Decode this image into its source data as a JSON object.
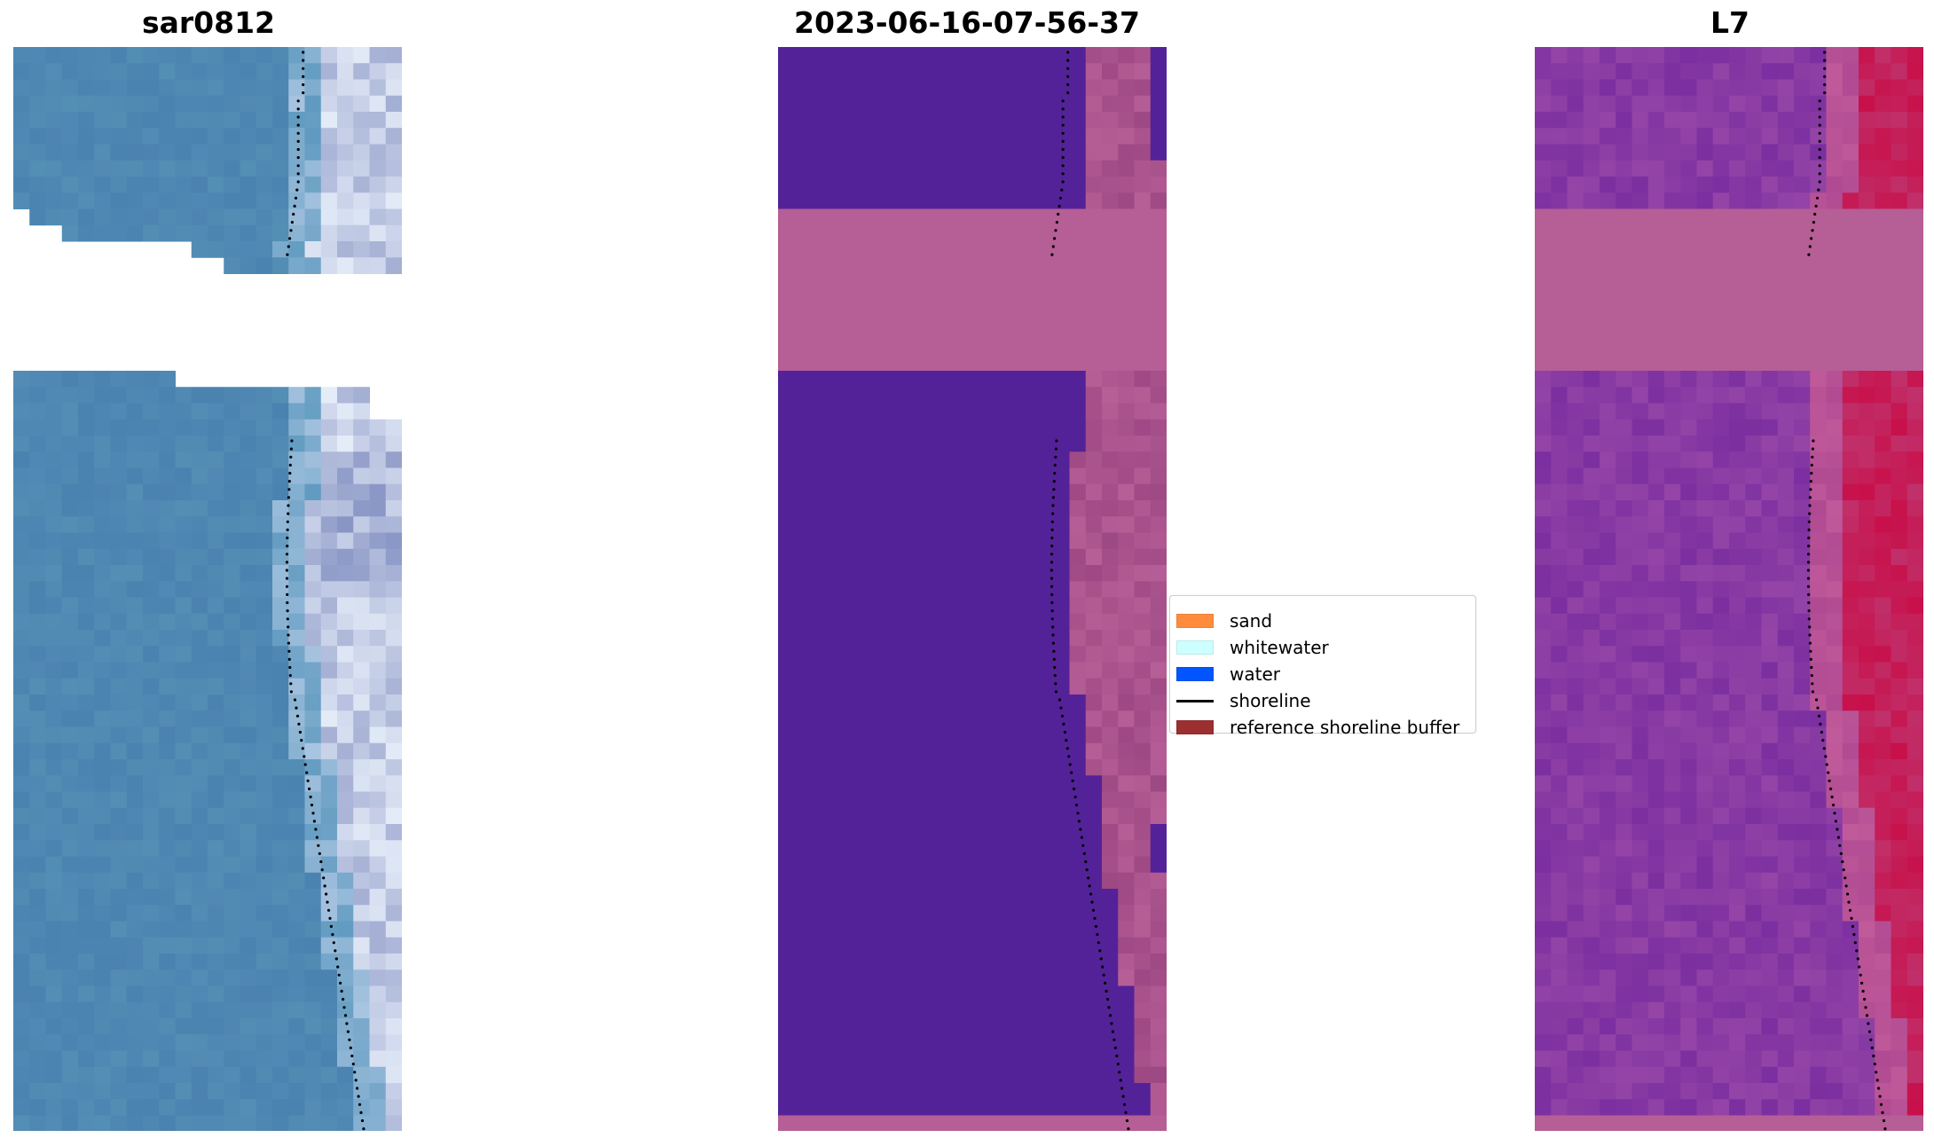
{
  "panels": [
    {
      "title": "sar0812",
      "kind": "rgb"
    },
    {
      "title": "2023-06-16-07-56-37",
      "kind": "classified"
    },
    {
      "title": "L7",
      "kind": "index"
    }
  ],
  "legend": [
    {
      "label": "sand",
      "color": "#ff8c3c",
      "type": "patch"
    },
    {
      "label": "whitewater",
      "color": "#ccffff",
      "type": "patch"
    },
    {
      "label": "water",
      "color": "#0055ff",
      "type": "patch"
    },
    {
      "label": "shoreline",
      "color": "#000000",
      "type": "line"
    },
    {
      "label": "reference shoreline buffer",
      "color": "#9c2f2f",
      "type": "patch"
    }
  ],
  "colors": {
    "water_rgb": "#4a82b0",
    "whitewater_rgb": "#e4ecf8",
    "classified_water": "#542298",
    "buffer_overlay": "#b65e96",
    "index_low": "#7b2fa0",
    "index_high": "#c8104a",
    "shoreline": "#000000"
  }
}
